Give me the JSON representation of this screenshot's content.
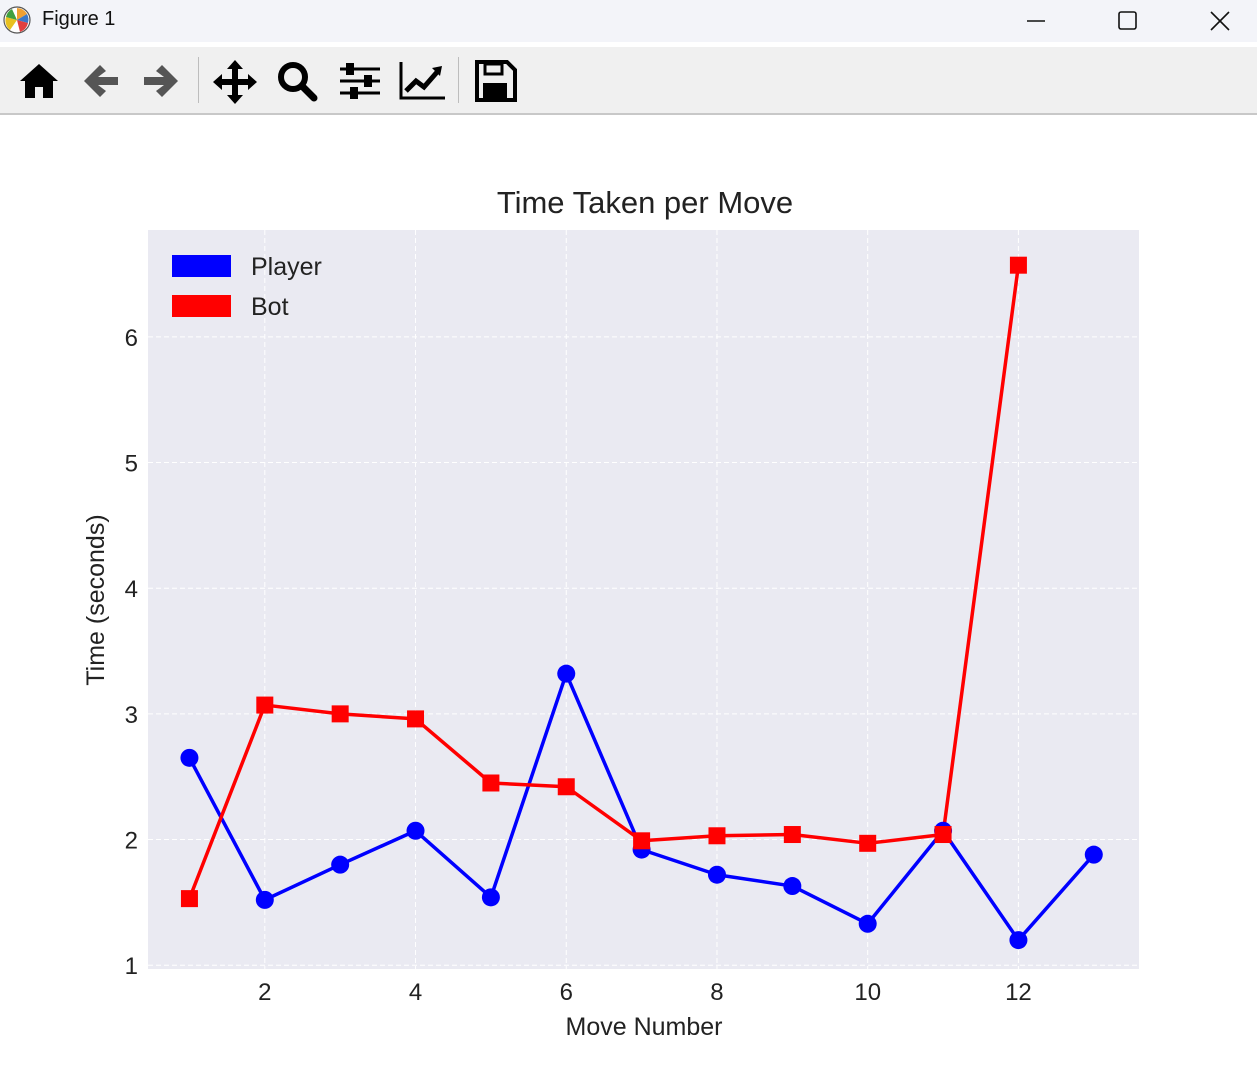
{
  "window": {
    "title": "Figure 1",
    "icon": "matplotlib-logo-icon"
  },
  "toolbar": {
    "buttons": [
      {
        "name": "home",
        "icon": "home-icon"
      },
      {
        "name": "back",
        "icon": "arrow-left-icon"
      },
      {
        "name": "forward",
        "icon": "arrow-right-icon"
      },
      {
        "name": "pan",
        "icon": "move-arrows-icon"
      },
      {
        "name": "zoom",
        "icon": "magnifier-icon"
      },
      {
        "name": "subplots",
        "icon": "sliders-icon"
      },
      {
        "name": "customize",
        "icon": "chart-line-icon"
      },
      {
        "name": "save",
        "icon": "floppy-disk-icon"
      }
    ]
  },
  "chart_data": {
    "type": "line",
    "title": "Time Taken per Move",
    "xlabel": "Move Number",
    "ylabel": "Time (seconds)",
    "xlim": [
      0.45,
      13.6
    ],
    "ylim": [
      0.97,
      6.85
    ],
    "xticks": [
      2,
      4,
      6,
      8,
      10,
      12
    ],
    "yticks": [
      1,
      2,
      3,
      4,
      5,
      6
    ],
    "grid": true,
    "legend_position": "top-left",
    "background": "#eaeaf2",
    "series": [
      {
        "name": "Player",
        "color": "#0000ff",
        "marker": "circle",
        "x": [
          1,
          2,
          3,
          4,
          5,
          6,
          7,
          8,
          9,
          10,
          11,
          12,
          13
        ],
        "y": [
          2.65,
          1.52,
          1.8,
          2.07,
          1.54,
          3.32,
          1.92,
          1.72,
          1.63,
          1.33,
          2.07,
          1.2,
          1.88
        ]
      },
      {
        "name": "Bot",
        "color": "#ff0000",
        "marker": "square",
        "x": [
          1,
          2,
          3,
          4,
          5,
          6,
          7,
          8,
          9,
          10,
          11,
          12
        ],
        "y": [
          1.53,
          3.07,
          3.0,
          2.96,
          2.45,
          2.42,
          1.99,
          2.03,
          2.04,
          1.97,
          2.04,
          6.57
        ]
      }
    ]
  }
}
